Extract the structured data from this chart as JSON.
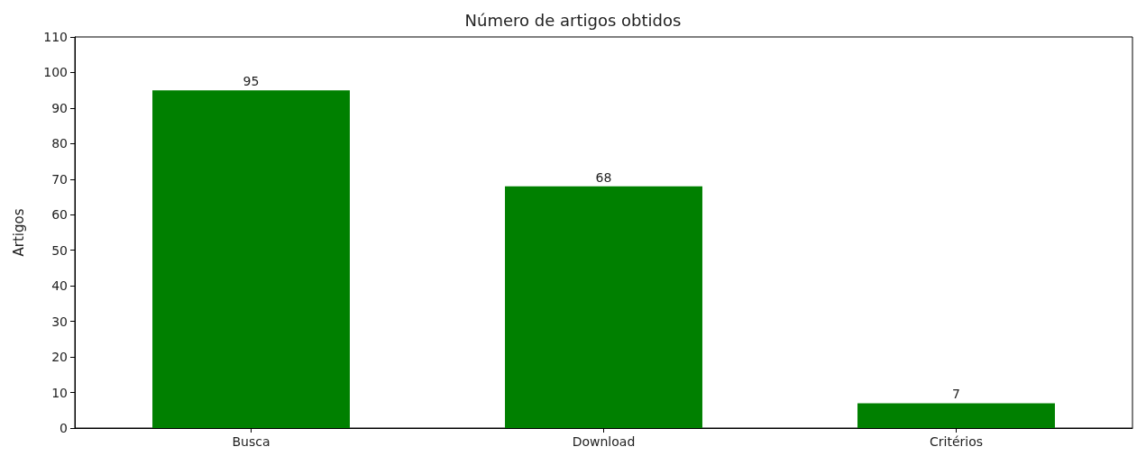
{
  "chart_data": {
    "type": "bar",
    "title": "Número de artigos obtidos",
    "ylabel": "Artigos",
    "categories": [
      "Busca",
      "Download",
      "Critérios"
    ],
    "values": [
      95,
      68,
      7
    ],
    "color": "#008000",
    "ylim": [
      0,
      110
    ],
    "yticks": [
      0,
      10,
      20,
      30,
      40,
      50,
      60,
      70,
      80,
      90,
      100,
      110
    ],
    "grid": false,
    "data_labels": true
  }
}
